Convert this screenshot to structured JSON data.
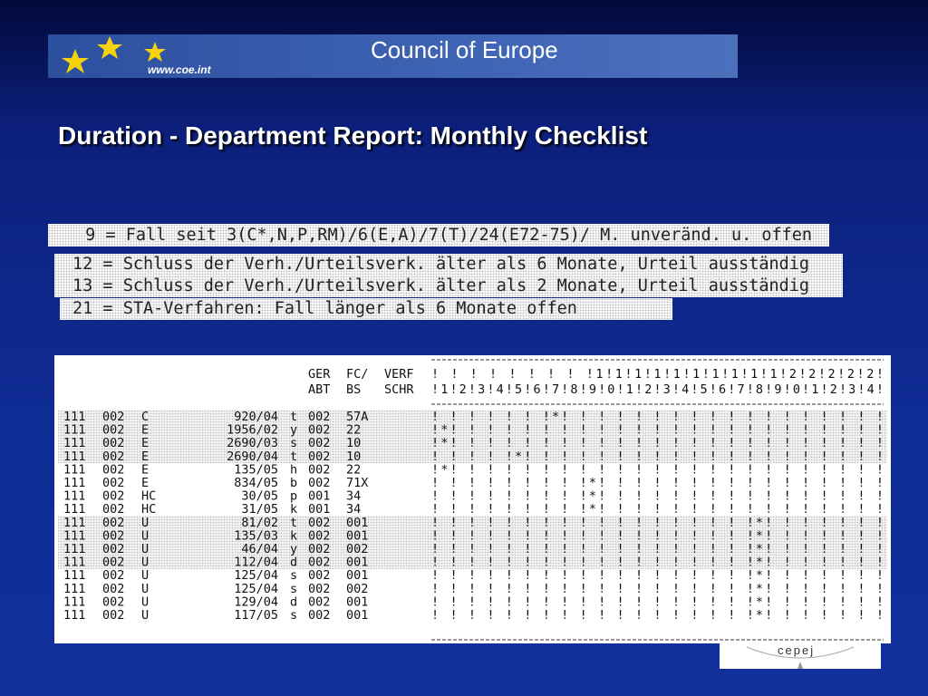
{
  "header": {
    "org": "Council of Europe",
    "url": "www.coe.int"
  },
  "title": "Duration - Department Report: Monthly Checklist",
  "legend": [
    " 9 = Fall seit 3(C*,N,P,RM)/6(E,A)/7(T)/24(E72-75)/ M. unveränd. u. offen",
    "12 = Schluss der Verh./Urteilsverk. älter als 6 Monate, Urteil ausständig",
    "13 = Schluss der Verh./Urteilsverk. älter als 2 Monate, Urteil ausständig",
    "21 = STA-Verfahren: Fall länger als 6 Monate offen"
  ],
  "table": {
    "columns_top": [
      "GER",
      "FC/",
      "VERF"
    ],
    "columns_bottom": [
      "ABT",
      "BS",
      "SCHR"
    ],
    "checklist_header": [
      "! ! ! ! ! ! ! ! !1!1!1!1!1!1!1!1!1!1!2!2!2!2!2!",
      "!1!2!3!4!5!6!7!8!9!0!1!2!3!4!5!6!7!8!9!0!1!2!3!4!"
    ],
    "rows": [
      [
        "111",
        "002",
        "C",
        "920/04",
        "t",
        "002",
        "57A",
        "! ! ! ! ! ! !*! ! ! ! ! ! ! ! ! ! ! ! ! ! ! ! ! !"
      ],
      [
        "111",
        "002",
        "E",
        "1956/02",
        "y",
        "002",
        "22",
        "!*! ! ! ! ! ! ! ! ! ! ! ! ! ! ! ! ! ! ! ! ! ! ! !"
      ],
      [
        "111",
        "002",
        "E",
        "2690/03",
        "s",
        "002",
        "10",
        "!*! ! ! ! ! ! ! ! ! ! ! ! ! ! ! ! ! ! ! ! ! ! ! !"
      ],
      [
        "111",
        "002",
        "E",
        "2690/04",
        "t",
        "002",
        "10",
        "! ! ! ! !*! ! ! ! ! ! ! ! ! ! ! ! ! ! ! ! ! ! ! !"
      ],
      [
        "111",
        "002",
        "E",
        "135/05",
        "h",
        "002",
        "22",
        "!*! ! ! ! ! ! ! ! ! ! ! ! ! ! ! ! ! ! ! ! ! ! ! !"
      ],
      [
        "111",
        "002",
        "E",
        "834/05",
        "b",
        "002",
        "71X",
        "! ! ! ! ! ! ! ! !*! ! ! ! ! ! ! ! ! ! ! ! ! ! ! !"
      ],
      [
        "111",
        "002",
        "HC",
        "30/05",
        "p",
        "001",
        "34",
        "! ! ! ! ! ! ! ! !*! ! ! ! ! ! ! ! ! ! ! ! ! ! ! !"
      ],
      [
        "111",
        "002",
        "HC",
        "31/05",
        "k",
        "001",
        "34",
        "! ! ! ! ! ! ! ! !*! ! ! ! ! ! ! ! ! ! ! ! ! ! ! !"
      ],
      [
        "111",
        "002",
        "U",
        "81/02",
        "t",
        "002",
        "001",
        "! ! ! ! ! ! ! ! ! ! ! ! ! ! ! ! ! !*! ! ! ! ! ! !"
      ],
      [
        "111",
        "002",
        "U",
        "135/03",
        "k",
        "002",
        "001",
        "! ! ! ! ! ! ! ! ! ! ! ! ! ! ! ! ! !*! ! ! ! ! ! !"
      ],
      [
        "111",
        "002",
        "U",
        "46/04",
        "y",
        "002",
        "002",
        "! ! ! ! ! ! ! ! ! ! ! ! ! ! ! ! ! !*! ! ! ! ! ! !"
      ],
      [
        "111",
        "002",
        "U",
        "112/04",
        "d",
        "002",
        "001",
        "! ! ! ! ! ! ! ! ! ! ! ! ! ! ! ! ! !*! ! ! ! ! ! !"
      ],
      [
        "111",
        "002",
        "U",
        "125/04",
        "s",
        "002",
        "001",
        "! ! ! ! ! ! ! ! ! ! ! ! ! ! ! ! ! !*! ! ! ! ! ! !"
      ],
      [
        "111",
        "002",
        "U",
        "125/04",
        "s",
        "002",
        "002",
        "! ! ! ! ! ! ! ! ! ! ! ! ! ! ! ! ! !*! ! ! ! ! ! !"
      ],
      [
        "111",
        "002",
        "U",
        "129/04",
        "d",
        "002",
        "001",
        "! ! ! ! ! ! ! ! ! ! ! ! ! ! ! ! ! !*! ! ! ! ! ! !"
      ],
      [
        "111",
        "002",
        "U",
        "117/05",
        "s",
        "002",
        "001",
        "! ! ! ! ! ! ! ! ! ! ! ! ! ! ! ! ! !*! ! ! ! ! ! !"
      ]
    ]
  },
  "footer_logo": "cepej"
}
